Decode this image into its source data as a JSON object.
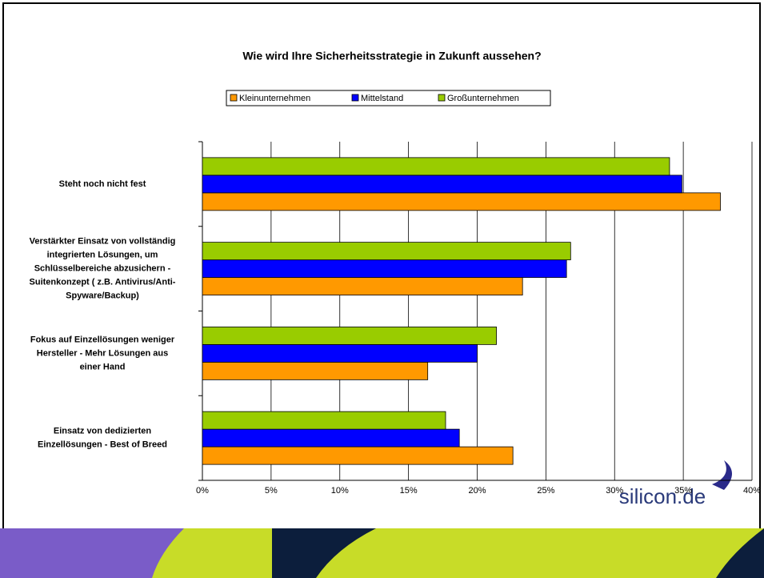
{
  "chart_data": {
    "type": "bar",
    "orientation": "horizontal",
    "title": "Wie wird Ihre Sicherheitsstrategie in Zukunft aussehen?",
    "categories": [
      [
        "Steht noch nicht fest"
      ],
      [
        "Verstärkter Einsatz von vollständig",
        "integrierten Lösungen, um",
        "Schlüsselbereiche abzusichern -",
        "Suitenkonzept ( z.B. Antivirus/Anti-",
        "Spyware/Backup)"
      ],
      [
        "Fokus auf Einzellösungen weniger",
        "Hersteller - Mehr Lösungen aus",
        "einer Hand"
      ],
      [
        "Einsatz von dedizierten",
        "Einzellösungen - Best of Breed"
      ]
    ],
    "series": [
      {
        "name": "Kleinunternehmen",
        "color": "#FF9900",
        "values": [
          37.7,
          23.3,
          16.4,
          22.6
        ]
      },
      {
        "name": "Mittelstand",
        "color": "#0000FF",
        "values": [
          34.9,
          26.5,
          20.0,
          18.7
        ]
      },
      {
        "name": "Großunternehmen",
        "color": "#99CC00",
        "values": [
          34.0,
          26.8,
          21.4,
          17.7
        ]
      }
    ],
    "xlim": [
      0,
      40
    ],
    "xticks": [
      {
        "value": 0,
        "label": "0%"
      },
      {
        "value": 5,
        "label": "5%"
      },
      {
        "value": 10,
        "label": "10%"
      },
      {
        "value": 15,
        "label": "15%"
      },
      {
        "value": 20,
        "label": "20%"
      },
      {
        "value": 25,
        "label": "25%"
      },
      {
        "value": 30,
        "label": "30%"
      },
      {
        "value": 35,
        "label": "35%"
      },
      {
        "value": 40,
        "label": "40%"
      }
    ],
    "grid": true,
    "legend": "top"
  },
  "logo": "silicon.de"
}
